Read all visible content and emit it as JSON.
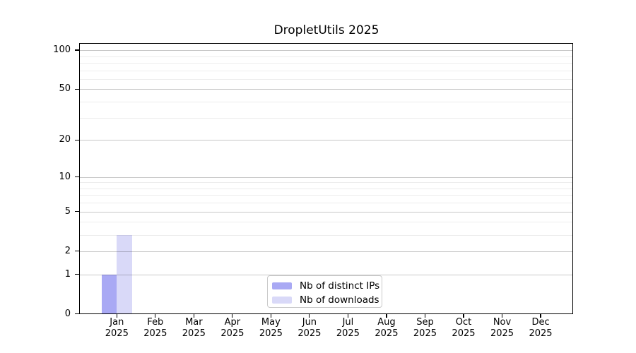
{
  "chart_data": {
    "type": "bar",
    "title": "DropletUtils 2025",
    "categories": [
      "Jan 2025",
      "Feb 2025",
      "Mar 2025",
      "Apr 2025",
      "May 2025",
      "Jun 2025",
      "Jul 2025",
      "Aug 2025",
      "Sep 2025",
      "Oct 2025",
      "Nov 2025",
      "Dec 2025"
    ],
    "months": [
      {
        "label": "Jan",
        "year": "2025"
      },
      {
        "label": "Feb",
        "year": "2025"
      },
      {
        "label": "Mar",
        "year": "2025"
      },
      {
        "label": "Apr",
        "year": "2025"
      },
      {
        "label": "May",
        "year": "2025"
      },
      {
        "label": "Jun",
        "year": "2025"
      },
      {
        "label": "Jul",
        "year": "2025"
      },
      {
        "label": "Aug",
        "year": "2025"
      },
      {
        "label": "Sep",
        "year": "2025"
      },
      {
        "label": "Oct",
        "year": "2025"
      },
      {
        "label": "Nov",
        "year": "2025"
      },
      {
        "label": "Dec",
        "year": "2025"
      }
    ],
    "series": [
      {
        "name": "Nb of distinct IPs",
        "color": "#a9a9f4",
        "values": [
          1,
          0,
          0,
          0,
          0,
          0,
          0,
          0,
          0,
          0,
          0,
          0
        ]
      },
      {
        "name": "Nb of downloads",
        "color": "#d9d9f8",
        "values": [
          3,
          0,
          0,
          0,
          0,
          0,
          0,
          0,
          0,
          0,
          0,
          0
        ]
      }
    ],
    "y_scale": "log10(1+y)",
    "ylim": [
      0,
      112
    ],
    "y_tick_labels": [
      "100",
      "50",
      "20",
      "10",
      "5",
      "2",
      "1",
      "0"
    ],
    "y_tick_values": [
      100,
      50,
      20,
      10,
      5,
      2,
      1,
      0
    ],
    "y_minor_gridlines": [
      3,
      4,
      6,
      7,
      8,
      9,
      30,
      40,
      60,
      70,
      80,
      90
    ],
    "grid": "horizontal",
    "legend_position": "bottom-center"
  }
}
